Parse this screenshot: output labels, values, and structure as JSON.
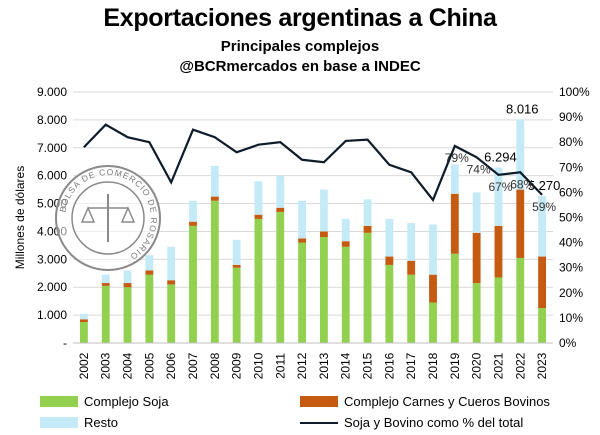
{
  "chart_data": {
    "type": "bar",
    "stacked": true,
    "title": "Exportaciones argentinas a China",
    "subtitle_1": "Principales complejos",
    "subtitle_2": "@BCRmercados en base a INDEC",
    "ylabel": "Millones de dólares",
    "ylim": [
      0,
      9000
    ],
    "y_ticks": [
      0,
      1000,
      2000,
      3000,
      4000,
      5000,
      6000,
      7000,
      8000,
      9000
    ],
    "y_tick_labels": [
      "-",
      "1.000",
      "2.000",
      "3.000",
      "4.000",
      "5.000",
      "6.000",
      "7.000",
      "8.000",
      "9.000"
    ],
    "y2lim": [
      0,
      100
    ],
    "y2_ticks": [
      0,
      10,
      20,
      30,
      40,
      50,
      60,
      70,
      80,
      90,
      100
    ],
    "y2_tick_labels": [
      "0%",
      "10%",
      "20%",
      "30%",
      "40%",
      "50%",
      "60%",
      "70%",
      "80%",
      "90%",
      "100%"
    ],
    "categories": [
      "2002",
      "2003",
      "2004",
      "2005",
      "2006",
      "2007",
      "2008",
      "2009",
      "2010",
      "2011",
      "2012",
      "2013",
      "2014",
      "2015",
      "2016",
      "2017",
      "2018",
      "2019",
      "2020",
      "2021",
      "2022",
      "2023"
    ],
    "series": [
      {
        "name": "Complejo Soja",
        "color": "#92d050",
        "values": [
          750,
          2050,
          2000,
          2450,
          2100,
          4200,
          5100,
          2700,
          4450,
          4700,
          3600,
          3800,
          3450,
          3950,
          2800,
          2450,
          1450,
          3200,
          2150,
          2350,
          3050,
          1250
        ]
      },
      {
        "name": "Complejo Carnes y Cueros Bovinos",
        "color": "#c55a11",
        "values": [
          100,
          100,
          150,
          150,
          150,
          150,
          150,
          100,
          150,
          150,
          150,
          200,
          200,
          250,
          300,
          500,
          1000,
          2150,
          1800,
          1850,
          2450,
          1850
        ]
      },
      {
        "name": "Resto",
        "color": "#c5eaf7",
        "values": [
          200,
          300,
          450,
          550,
          1200,
          750,
          1100,
          900,
          1200,
          1150,
          1350,
          1500,
          800,
          950,
          1350,
          1350,
          1800,
          1050,
          1450,
          2094,
          2516,
          2170
        ]
      }
    ],
    "line_series": {
      "name": "Soja y Bovino como % del total",
      "color": "#0d1b2a",
      "axis": "right",
      "values": [
        78,
        87,
        82,
        80,
        64,
        85,
        82,
        76,
        79,
        80,
        73,
        72,
        80.5,
        81,
        71,
        68,
        57,
        78.5,
        74,
        67,
        68,
        59
      ]
    },
    "data_labels": [
      {
        "category": "2021",
        "text": "6.294"
      },
      {
        "category": "2022",
        "text": "8.016"
      },
      {
        "category": "2023",
        "text": "5.270"
      }
    ],
    "percent_labels": [
      {
        "category": "2019",
        "text": "79%"
      },
      {
        "category": "2020",
        "text": "74%"
      },
      {
        "category": "2021",
        "text": "67%"
      },
      {
        "category": "2022",
        "text": "68%"
      },
      {
        "category": "2023",
        "text": "59%"
      }
    ],
    "legend_position": "bottom",
    "grid": true
  },
  "watermark": {
    "text": "BOLSA DE COMERCIO DE ROSARIO"
  }
}
